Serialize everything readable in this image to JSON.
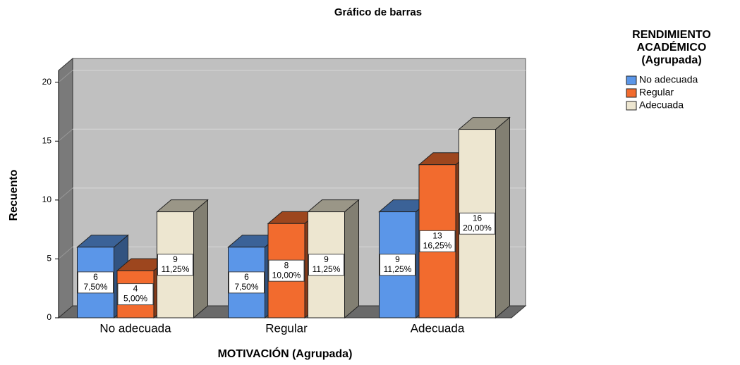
{
  "chart_data": {
    "type": "bar3d",
    "title": "Gráfico de barras",
    "x_label": "MOTIVACIÓN (Agrupada)",
    "y_label": "Recuento",
    "categories": [
      "No adecuada",
      "Regular",
      "Adecuada"
    ],
    "legend_title": [
      "RENDIMIENTO",
      "ACADÉMICO",
      "(Agrupada)"
    ],
    "legend_position": "right",
    "series": [
      {
        "name": "No adecuada",
        "color": "#5b96e8",
        "values": [
          6,
          6,
          9
        ],
        "percents": [
          7.5,
          7.5,
          11.25
        ],
        "percent_labels": [
          "7,50%",
          "7,50%",
          "11,25%"
        ]
      },
      {
        "name": "Regular",
        "color": "#f26b2e",
        "values": [
          4,
          8,
          13
        ],
        "percents": [
          5,
          10,
          16.25
        ],
        "percent_labels": [
          "5,00%",
          "10,00%",
          "16,25%"
        ]
      },
      {
        "name": "Adecuada",
        "color": "#ede6d0",
        "values": [
          9,
          9,
          16
        ],
        "percents": [
          11.25,
          11.25,
          20
        ],
        "percent_labels": [
          "11,25%",
          "11,25%",
          "20,00%"
        ]
      }
    ],
    "ylim": [
      0,
      21
    ],
    "yticks": [
      0,
      5,
      10,
      15,
      20
    ],
    "grid": true
  }
}
